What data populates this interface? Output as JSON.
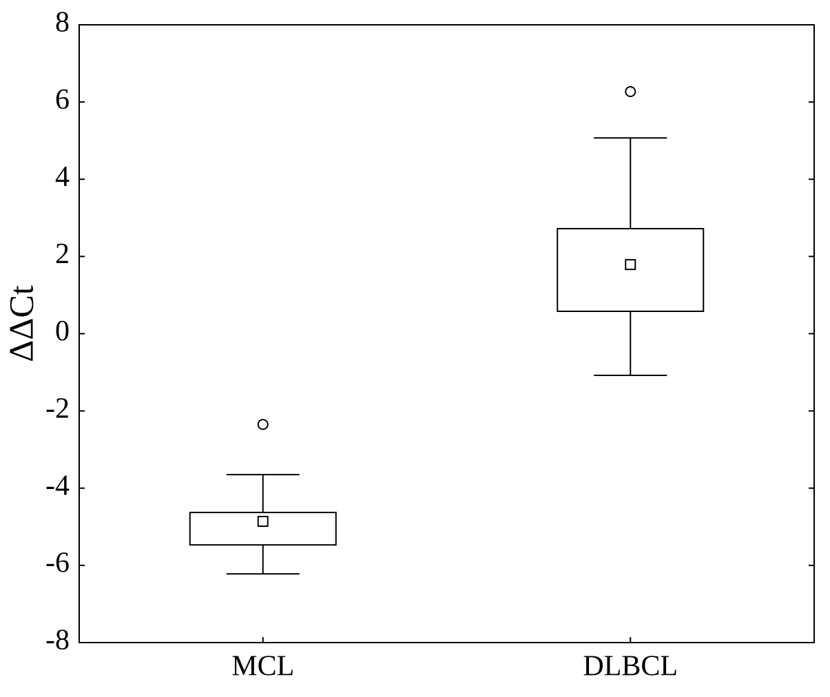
{
  "chart_data": {
    "type": "box",
    "ylabel": "ΔΔCt",
    "categories": [
      "MCL",
      "DLBCL"
    ],
    "boxes": [
      {
        "whisker_low": -6.22,
        "q1": -5.47,
        "median": -4.86,
        "q3": -4.63,
        "whisker_high": -3.65,
        "outliers": [
          -2.35
        ]
      },
      {
        "whisker_low": -1.08,
        "q1": 0.58,
        "median": 1.79,
        "q3": 2.72,
        "whisker_high": 5.07,
        "outliers": [
          6.27
        ]
      }
    ],
    "color": "#000000",
    "fill": "#ffffff",
    "ylim": [
      -8,
      8
    ],
    "yticks": [
      -8,
      -6,
      -4,
      -2,
      0,
      2,
      4,
      6,
      8
    ],
    "grid": false
  }
}
